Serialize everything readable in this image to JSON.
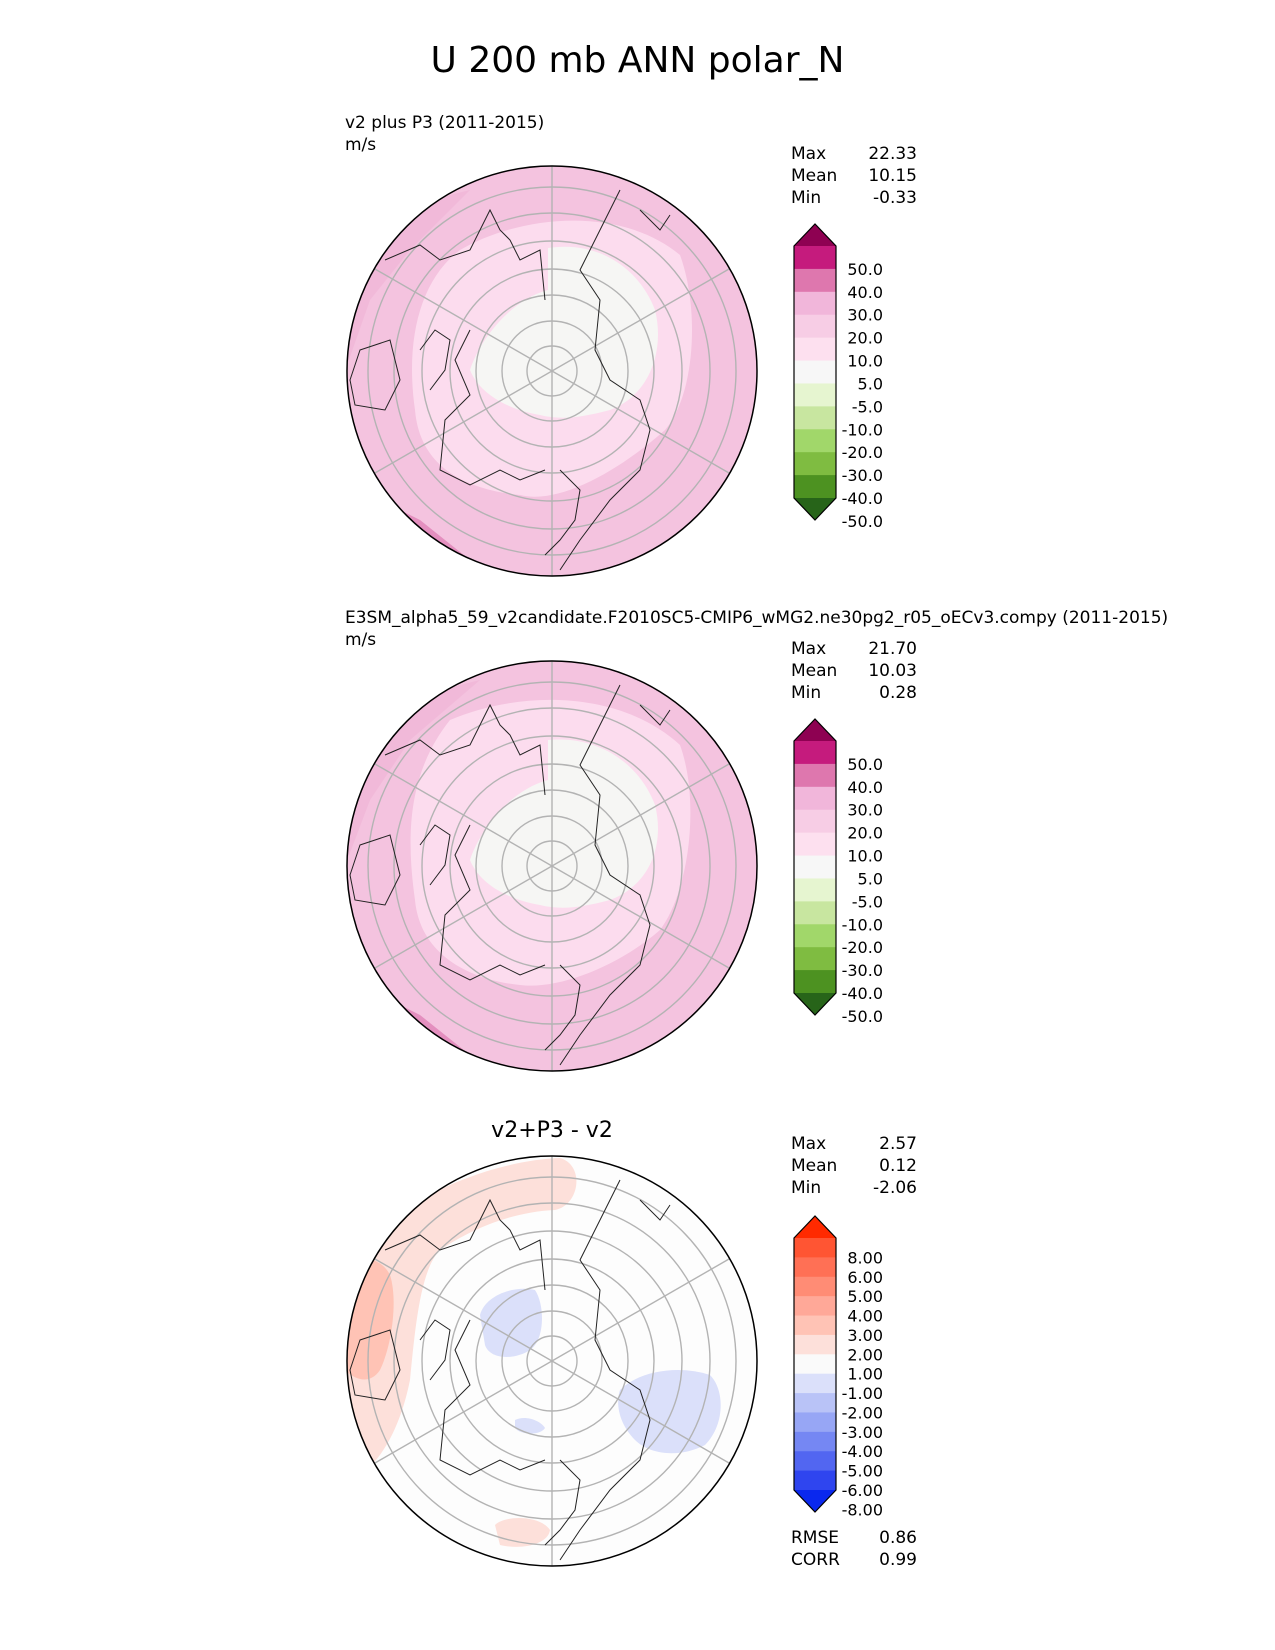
{
  "figure_title": "U 200 mb ANN polar_N",
  "panels": [
    {
      "title": "v2 plus P3 (2011-2015)",
      "units": "m/s",
      "stats": {
        "labels": [
          "Max",
          "Mean",
          "Min"
        ],
        "values": [
          "22.33",
          "10.15",
          "-0.33"
        ]
      }
    },
    {
      "title": "E3SM_alpha5_59_v2candidate.F2010SC5-CMIP6_wMG2.ne30pg2_r05_oECv3.compy (2011-2015)",
      "units": "m/s",
      "stats": {
        "labels": [
          "Max",
          "Mean",
          "Min"
        ],
        "values": [
          "21.70",
          "10.03",
          "0.28"
        ]
      }
    },
    {
      "title": "v2+P3 - v2",
      "stats": {
        "labels": [
          "Max",
          "Mean",
          "Min"
        ],
        "values": [
          "2.57",
          "0.12",
          "-2.06"
        ]
      },
      "bottom_stats": {
        "labels": [
          "RMSE",
          "CORR"
        ],
        "values": [
          "0.86",
          "0.99"
        ]
      }
    }
  ],
  "chart_data": [
    {
      "type": "heatmap",
      "projection": "north polar stereographic",
      "title": "v2 plus P3 (2011-2015)",
      "units": "m/s",
      "colorbar": {
        "ticks": [
          "50.0",
          "40.0",
          "30.0",
          "20.0",
          "10.0",
          "5.0",
          "-5.0",
          "-10.0",
          "-20.0",
          "-30.0",
          "-40.0",
          "-50.0"
        ],
        "colors": [
          "#8e0152",
          "#c51b7d",
          "#de77ae",
          "#f1b6da",
          "#f7cde5",
          "#fde0ef",
          "#f7f7f7",
          "#e6f5d0",
          "#c8e6a0",
          "#a1d76a",
          "#7fbc41",
          "#4d9221",
          "#276419"
        ],
        "extend": "both"
      },
      "stats": {
        "max": 22.33,
        "mean": 10.15,
        "min": -0.33
      }
    },
    {
      "type": "heatmap",
      "projection": "north polar stereographic",
      "title": "E3SM_alpha5_59_v2candidate.F2010SC5-CMIP6_wMG2.ne30pg2_r05_oECv3.compy (2011-2015)",
      "units": "m/s",
      "colorbar": {
        "ticks": [
          "50.0",
          "40.0",
          "30.0",
          "20.0",
          "10.0",
          "5.0",
          "-5.0",
          "-10.0",
          "-20.0",
          "-30.0",
          "-40.0",
          "-50.0"
        ],
        "colors": [
          "#8e0152",
          "#c51b7d",
          "#de77ae",
          "#f1b6da",
          "#f7cde5",
          "#fde0ef",
          "#f7f7f7",
          "#e6f5d0",
          "#c8e6a0",
          "#a1d76a",
          "#7fbc41",
          "#4d9221",
          "#276419"
        ],
        "extend": "both"
      },
      "stats": {
        "max": 21.7,
        "mean": 10.03,
        "min": 0.28
      }
    },
    {
      "type": "heatmap",
      "projection": "north polar stereographic",
      "title": "v2+P3 - v2",
      "colorbar": {
        "ticks": [
          "8.00",
          "6.00",
          "5.00",
          "4.00",
          "3.00",
          "2.00",
          "1.00",
          "-1.00",
          "-2.00",
          "-3.00",
          "-4.00",
          "-5.00",
          "-6.00",
          "-8.00"
        ],
        "colors": [
          "#ff2a00",
          "#ff5533",
          "#ff7055",
          "#ff8c75",
          "#ffa898",
          "#ffc3b5",
          "#fde0da",
          "#fafafa",
          "#dbe0fa",
          "#b9c3f7",
          "#97a6f5",
          "#7587f3",
          "#5266f1",
          "#2f45ef",
          "#0a28ee"
        ],
        "extend": "both"
      },
      "stats": {
        "max": 2.57,
        "mean": 0.12,
        "min": -2.06,
        "rmse": 0.86,
        "corr": 0.99
      }
    }
  ]
}
